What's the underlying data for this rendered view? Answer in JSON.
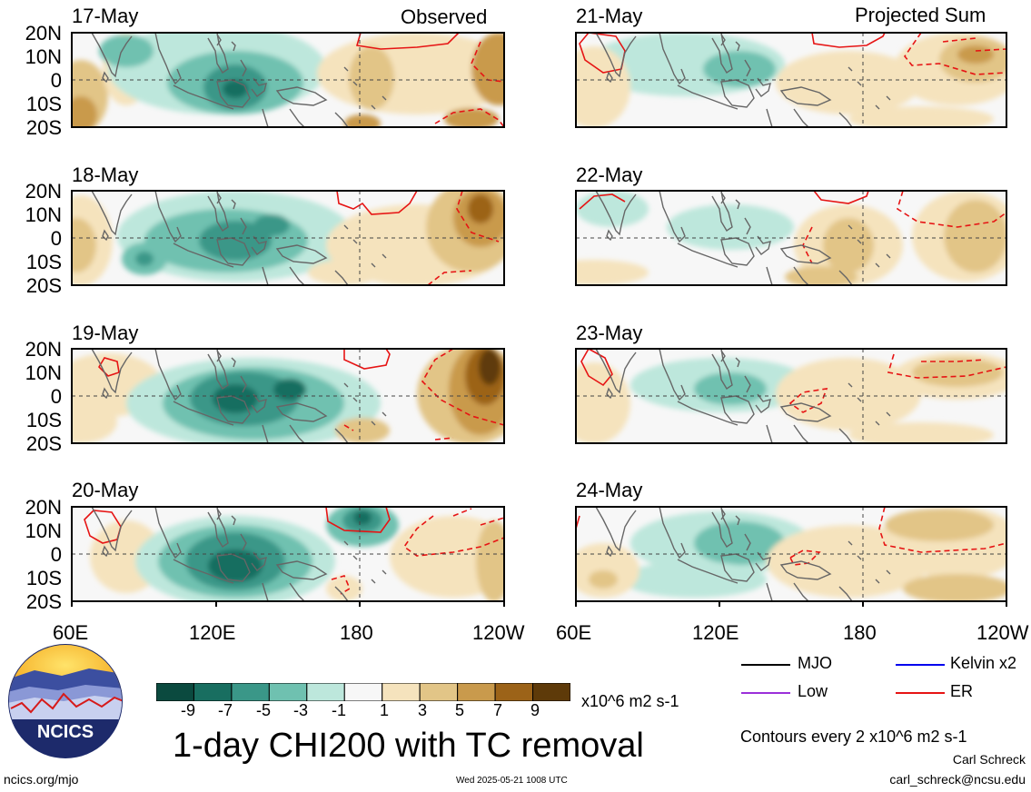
{
  "headers": {
    "left": "Observed",
    "right": "Projected Sum"
  },
  "observed_dates": [
    "17-May",
    "18-May",
    "19-May",
    "20-May"
  ],
  "projected_dates": [
    "21-May",
    "22-May",
    "23-May",
    "24-May"
  ],
  "lat_labels": [
    "20N",
    "10N",
    "0",
    "10S",
    "20S"
  ],
  "lon_labels": [
    "60E",
    "120E",
    "180",
    "120W"
  ],
  "colorbar": {
    "ticks": [
      "-9",
      "-7",
      "-5",
      "-3",
      "-1",
      "1",
      "3",
      "5",
      "7",
      "9"
    ],
    "colors": [
      "#0b4a3f",
      "#186e60",
      "#3a9788",
      "#6fc1b0",
      "#bde7dc",
      "#f7f7f7",
      "#f5e3bd",
      "#e2c587",
      "#c99a4c",
      "#9c6318",
      "#5e3a09"
    ],
    "units": "x10^6 m2 s-1"
  },
  "legend": {
    "items": [
      {
        "label": "MJO",
        "color": "#000000"
      },
      {
        "label": "Kelvin x2",
        "color": "#0000ee"
      },
      {
        "label": "Low",
        "color": "#9b30d9"
      },
      {
        "label": "ER",
        "color": "#e61414"
      }
    ],
    "contour_note": "Contours every 2 x10^6 m2 s-1"
  },
  "title": "1-day CHI200 with TC removal",
  "logo_text": "NCICS",
  "footer": {
    "url": "ncics.org/mjo",
    "timestamp": "Wed 2025-05-21 1008 UTC",
    "author": "Carl Schreck",
    "email": "carl_schreck@ncsu.edu"
  }
}
